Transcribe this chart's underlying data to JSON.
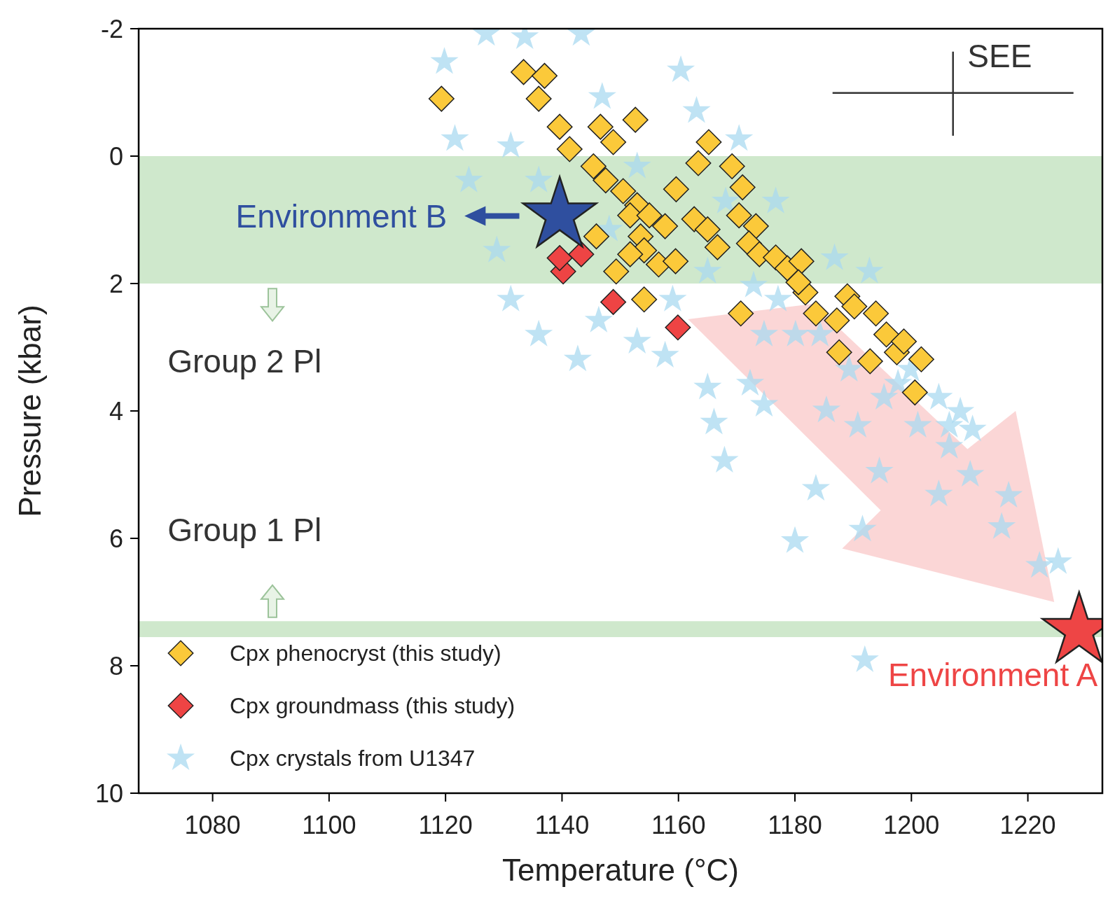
{
  "chart_data": {
    "type": "scatter",
    "xlabel": "Temperature (°C)",
    "ylabel": "Pressure (kbar)",
    "xlim": [
      1067.3,
      1232.8
    ],
    "xticks": [
      1080,
      1100,
      1120,
      1140,
      1160,
      1180,
      1200,
      1220
    ],
    "ylim": [
      10,
      -2
    ],
    "yticks": [
      -2,
      0,
      2,
      4,
      6,
      8,
      10
    ],
    "legend": "bottom left",
    "bands": [
      {
        "axis": "y",
        "from": 0,
        "to": 2,
        "color": "#cfe8cc"
      },
      {
        "axis": "y",
        "from": 7.3,
        "to": 7.55,
        "color": "#cfe8cc"
      }
    ],
    "annotations": [
      "SEE",
      "Group 2 Pl",
      "Group 1 Pl",
      "Environment B",
      "Environment A"
    ],
    "series": [
      {
        "name": "Cpx crystals from U1347",
        "color": "#a9daf0",
        "marker": "star",
        "x": [
          1166.1,
          1167.9,
          1180,
          1183.6,
          1185.4,
          1190.8,
          1194.5,
          1191.6,
          1204.7,
          1210.1,
          1215.5,
          1216.7,
          1222,
          1225.2,
          1192,
          1210.5,
          1206.5,
          1142.7,
          1136,
          1131.2,
          1121.6,
          1119.8,
          1127,
          1133.6,
          1143.3,
          1160.4,
          1146.9,
          1128.8,
          1124,
          1174.7,
          1172.3,
          1165,
          1152.9,
          1157.7,
          1146.3,
          1170.4,
          1163.1,
          1176.7,
          1186.8,
          1184.3,
          1199.9,
          1204.7,
          1206.5,
          1208.4,
          1201.1,
          1192.8,
          1177.1,
          1174.7,
          1159,
          1165,
          1148.1,
          1136,
          1131.2,
          1152.9,
          1168.1,
          1172.9,
          1180.1,
          1189.3,
          1195.3,
          1197.7
        ],
        "values": [
          4.18,
          4.78,
          6.04,
          5.22,
          3.99,
          4.23,
          4.95,
          5.86,
          5.31,
          5.0,
          5.82,
          5.33,
          6.43,
          6.37,
          7.91,
          4.29,
          4.56,
          3.19,
          2.8,
          2.25,
          -0.27,
          -1.48,
          -1.92,
          -1.87,
          -1.92,
          -1.35,
          -0.93,
          1.48,
          0.38,
          3.9,
          3.57,
          3.63,
          2.91,
          3.13,
          2.58,
          -0.27,
          -0.71,
          0.71,
          1.6,
          2.8,
          3.35,
          3.79,
          4.23,
          4.01,
          4.23,
          1.81,
          2.25,
          2.8,
          2.25,
          1.81,
          1.15,
          0.38,
          -0.16,
          0.16,
          0.71,
          2.03,
          2.8,
          3.35,
          3.79,
          3.57
        ]
      },
      {
        "name": "Cpx phenocryst (this study)",
        "color": "#fbc93a",
        "marker": "diamond",
        "x": [
          1119.3,
          1133.4,
          1137,
          1136,
          1139.6,
          1141.3,
          1146.6,
          1148.8,
          1152.6,
          1145.4,
          1147.5,
          1150.5,
          1152.9,
          1151.7,
          1155,
          1157.7,
          1153.5,
          1154.1,
          1151.7,
          1156.6,
          1159.5,
          1149.3,
          1154.1,
          1159.6,
          1163.4,
          1165.2,
          1162.7,
          1165,
          1166.7,
          1169.2,
          1171,
          1170.4,
          1173.3,
          1172.1,
          1173.9,
          1176.7,
          1178.7,
          1181.1,
          1181.8,
          1183.6,
          1170.7,
          1187.6,
          1187.2,
          1189,
          1190.2,
          1193.9,
          1192.9,
          1195.7,
          1197.5,
          1198.7,
          1201.7,
          1200.6,
          1145.9,
          1180.6
        ],
        "values": [
          -0.9,
          -1.32,
          -1.26,
          -0.9,
          -0.46,
          -0.11,
          -0.46,
          -0.22,
          -0.57,
          0.16,
          0.38,
          0.55,
          0.77,
          0.93,
          0.93,
          1.1,
          1.26,
          1.48,
          1.54,
          1.7,
          1.65,
          1.81,
          2.25,
          0.52,
          0.11,
          -0.22,
          0.99,
          1.15,
          1.43,
          0.16,
          0.49,
          0.93,
          1.1,
          1.37,
          1.54,
          1.59,
          1.76,
          1.65,
          2.14,
          2.47,
          2.47,
          3.08,
          2.58,
          2.2,
          2.36,
          2.47,
          3.22,
          2.8,
          3.08,
          2.91,
          3.19,
          3.71,
          1.26,
          1.98
        ]
      },
      {
        "name": "Cpx groundmass (this study)",
        "color": "#ee4444",
        "marker": "diamond",
        "x": [
          1140.2,
          1143.3,
          1139.6,
          1148.8,
          1159.9
        ],
        "values": [
          1.81,
          1.54,
          1.6,
          2.29,
          2.69
        ]
      },
      {
        "color": "#2f4f9f",
        "marker": "star",
        "x": [
          1139.6
        ],
        "values": [
          0.93
        ]
      },
      {
        "color": "#ee4545",
        "marker": "star",
        "x": [
          1228.8
        ],
        "values": [
          7.45
        ]
      }
    ]
  }
}
